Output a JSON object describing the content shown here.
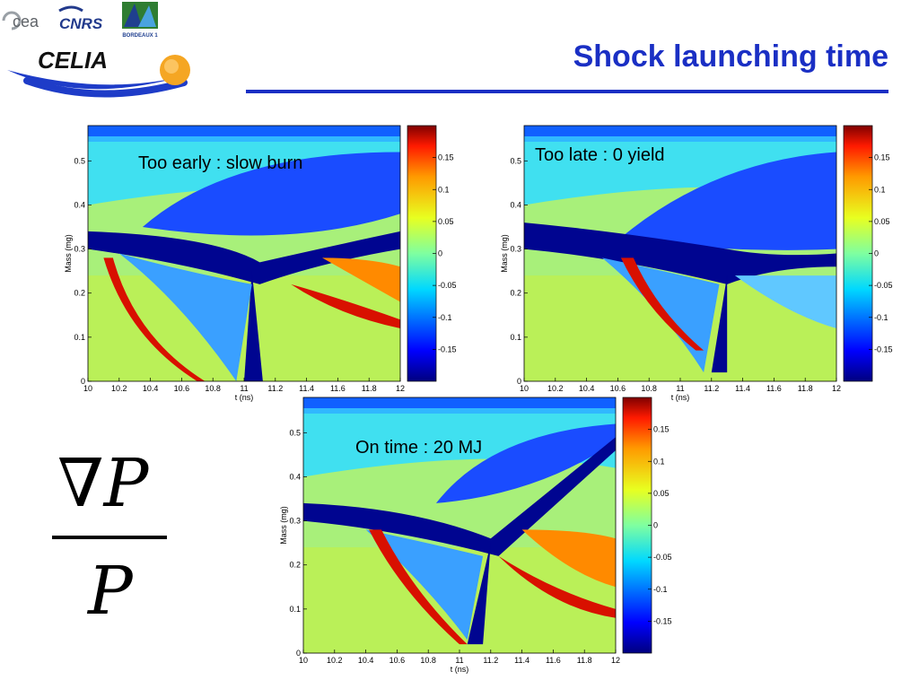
{
  "header": {
    "title": "Shock launching time",
    "logos": {
      "cea": "cea",
      "cnrs": "CNRS",
      "univ": "BORDEAUX 1",
      "celia": "CELIA"
    }
  },
  "formula": {
    "numerator": "∇P",
    "denominator": "P"
  },
  "colors": {
    "title": "#1a2fc4",
    "celia_blue": "#1e3cc8",
    "celia_orange": "#f5a623"
  },
  "chart_data": [
    {
      "type": "heatmap",
      "annotation": "Too early : slow burn",
      "xlabel": "t (ns)",
      "ylabel": "Mass (mg)",
      "xlim": [
        10,
        12
      ],
      "ylim": [
        0,
        0.58
      ],
      "xticks": [
        "10",
        "10.2",
        "10.4",
        "10.6",
        "10.8",
        "11",
        "11.2",
        "11.4",
        "11.6",
        "11.8",
        "12"
      ],
      "yticks": [
        "0",
        "0.1",
        "0.2",
        "0.3",
        "0.4",
        "0.5"
      ],
      "colorbar": {
        "range": [
          -0.2,
          0.2
        ],
        "ticks": [
          "0.15",
          "0.1",
          "0.05",
          "0",
          "-0.05",
          "-0.1",
          "-0.15"
        ]
      }
    },
    {
      "type": "heatmap",
      "annotation": "Too late : 0 yield",
      "xlabel": "t (ns)",
      "ylabel": "Mass (mg)",
      "xlim": [
        10,
        12
      ],
      "ylim": [
        0,
        0.58
      ],
      "xticks": [
        "10",
        "10.2",
        "10.4",
        "10.6",
        "10.8",
        "11",
        "11.2",
        "11.4",
        "11.6",
        "11.8",
        "12"
      ],
      "yticks": [
        "0",
        "0.1",
        "0.2",
        "0.3",
        "0.4",
        "0.5"
      ],
      "colorbar": {
        "range": [
          -0.2,
          0.2
        ],
        "ticks": [
          "0.15",
          "0.1",
          "0.05",
          "0",
          "-0.05",
          "-0.1",
          "-0.15"
        ]
      }
    },
    {
      "type": "heatmap",
      "annotation": "On time : 20 MJ",
      "xlabel": "t (ns)",
      "ylabel": "Mass (mg)",
      "xlim": [
        10,
        12
      ],
      "ylim": [
        0,
        0.58
      ],
      "xticks": [
        "10",
        "10.2",
        "10.4",
        "10.6",
        "10.8",
        "11",
        "11.2",
        "11.4",
        "11.6",
        "11.8",
        "12"
      ],
      "yticks": [
        "0",
        "0.1",
        "0.2",
        "0.3",
        "0.4",
        "0.5"
      ],
      "colorbar": {
        "range": [
          -0.2,
          0.2
        ],
        "ticks": [
          "0.15",
          "0.1",
          "0.05",
          "0",
          "-0.05",
          "-0.1",
          "-0.15"
        ]
      }
    }
  ]
}
